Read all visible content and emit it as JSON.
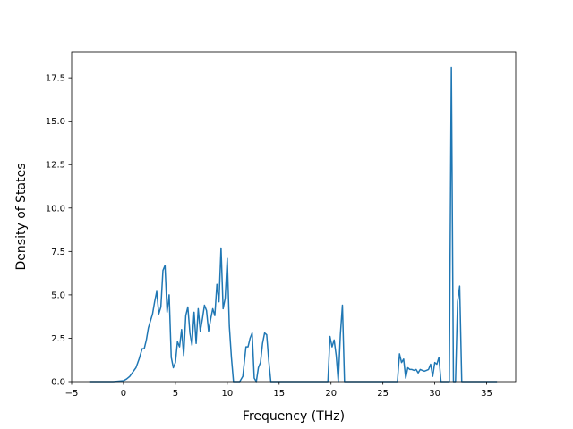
{
  "chart_data": {
    "type": "line",
    "xlabel": "Frequency (THz)",
    "ylabel": "Density of States",
    "xlim": [
      -5.0,
      37.8
    ],
    "ylim": [
      0.0,
      19.0
    ],
    "xticks": [
      -5,
      0,
      5,
      10,
      15,
      20,
      25,
      30,
      35
    ],
    "yticks": [
      0.0,
      2.5,
      5.0,
      7.5,
      10.0,
      12.5,
      15.0,
      17.5
    ],
    "grid": false,
    "legend": "none",
    "series": [
      {
        "color": "#1f77b4",
        "x": [
          -3.3,
          -1.0,
          0.0,
          0.3,
          0.6,
          0.9,
          1.2,
          1.5,
          1.8,
          2.0,
          2.2,
          2.4,
          2.6,
          2.8,
          3.0,
          3.2,
          3.4,
          3.6,
          3.8,
          4.0,
          4.2,
          4.4,
          4.6,
          4.8,
          5.0,
          5.2,
          5.4,
          5.6,
          5.8,
          6.0,
          6.2,
          6.4,
          6.6,
          6.8,
          7.0,
          7.2,
          7.4,
          7.6,
          7.8,
          8.0,
          8.2,
          8.4,
          8.6,
          8.8,
          9.0,
          9.2,
          9.4,
          9.6,
          9.8,
          10.0,
          10.2,
          10.4,
          10.6,
          10.8,
          11.0,
          11.2,
          11.5,
          11.8,
          12.0,
          12.2,
          12.4,
          12.6,
          12.8,
          13.0,
          13.2,
          13.4,
          13.6,
          13.8,
          14.0,
          14.2,
          19.7,
          19.9,
          20.1,
          20.3,
          20.5,
          20.7,
          20.9,
          21.1,
          21.3,
          21.5,
          26.2,
          26.4,
          26.6,
          26.8,
          27.0,
          27.2,
          27.4,
          27.6,
          27.8,
          28.0,
          28.2,
          28.4,
          28.6,
          28.8,
          29.0,
          29.2,
          29.4,
          29.6,
          29.8,
          30.0,
          30.2,
          30.4,
          30.6,
          30.8,
          31.4,
          31.6,
          31.8,
          32.0,
          32.2,
          32.4,
          32.6,
          32.8,
          33.0,
          36.0
        ],
        "y": [
          0.0,
          0.0,
          0.05,
          0.15,
          0.3,
          0.55,
          0.8,
          1.3,
          1.9,
          1.9,
          2.4,
          3.1,
          3.5,
          3.9,
          4.6,
          5.2,
          3.9,
          4.3,
          6.4,
          6.7,
          4.0,
          5.0,
          1.4,
          0.8,
          1.1,
          2.3,
          2.0,
          3.0,
          1.5,
          3.8,
          4.3,
          2.8,
          2.1,
          4.0,
          2.2,
          4.2,
          2.9,
          3.6,
          4.4,
          4.1,
          2.9,
          3.6,
          4.2,
          3.8,
          5.6,
          4.6,
          7.7,
          4.2,
          4.8,
          7.1,
          3.2,
          1.4,
          0.0,
          0.0,
          0.0,
          0.0,
          0.3,
          2.0,
          2.0,
          2.5,
          2.8,
          0.2,
          0.0,
          0.8,
          1.1,
          2.2,
          2.8,
          2.7,
          1.2,
          0.0,
          0.0,
          2.6,
          2.0,
          2.4,
          1.5,
          0.0,
          2.7,
          4.4,
          0.0,
          0.0,
          0.0,
          0.0,
          1.6,
          1.1,
          1.3,
          0.2,
          0.8,
          0.7,
          0.7,
          0.65,
          0.7,
          0.5,
          0.7,
          0.65,
          0.6,
          0.65,
          0.7,
          1.0,
          0.3,
          1.1,
          1.0,
          1.4,
          0.0,
          0.0,
          0.0,
          18.1,
          0.0,
          0.0,
          4.6,
          5.5,
          0.0,
          0.0,
          0.0,
          0.0
        ]
      }
    ]
  }
}
